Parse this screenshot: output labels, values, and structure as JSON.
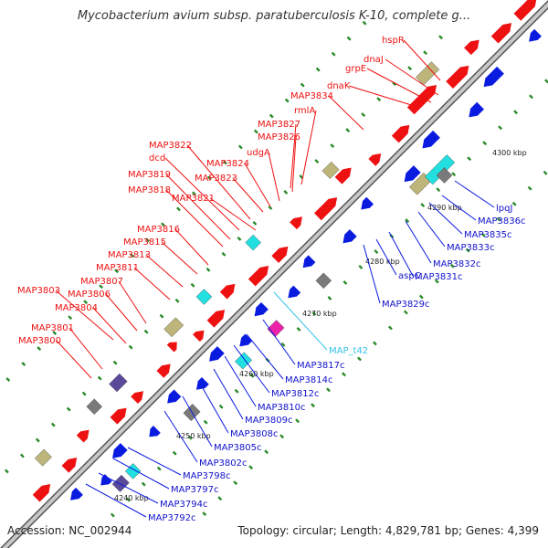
{
  "title": "Mycobacterium avium subsp. paratuberculosis K-10, complete g...",
  "footer": {
    "accession": "Accession: NC_002944",
    "summary": "Topology: circular; Length: 4,829,781 bp; Genes: 4,399"
  },
  "colors": {
    "forward_cds": "#ee1111",
    "reverse_cds": "#0a1be0",
    "rna": "#33c3e8",
    "backbone": "#777777",
    "gc_dots": "#2a8a2a",
    "olive": "#bdb57a",
    "grey": "#7a7a7a",
    "magenta": "#ee22aa",
    "cyan": "#22e0e0",
    "purple": "#5a4a9a"
  },
  "tick_labels": [
    "4240 kbp",
    "4250 kbp",
    "4260 kbp",
    "4270 kbp",
    "4280 kbp",
    "4290 kbp",
    "4300 kbp"
  ],
  "forward_genes": [
    "hspR",
    "dnaJ",
    "grpE",
    "dnaK",
    "MAP3834",
    "rmlA",
    "MAP3827",
    "MAP3826",
    "udgA",
    "MAP3824",
    "MAP3822",
    "MAP3823",
    "dcd",
    "MAP3819",
    "MAP3818",
    "MAP3821",
    "MAP3816",
    "MAP3815",
    "MAP3813",
    "MAP3811",
    "MAP3807",
    "MAP3803",
    "MAP3806",
    "MAP3804",
    "MAP3801",
    "MAP3800"
  ],
  "reverse_genes": [
    "lpqJ",
    "MAP3836c",
    "MAP3835c",
    "MAP3833c",
    "MAP3832c",
    "aspC",
    "MAP3831c",
    "MAP3829c",
    "MAP_t42",
    "MAP3817c",
    "MAP3814c",
    "MAP3812c",
    "MAP3810c",
    "MAP3809c",
    "MAP3808c",
    "MAP3805c",
    "MAP3802c",
    "MAP3798c",
    "MAP3797c",
    "MAP3794c",
    "MAP3792c"
  ]
}
